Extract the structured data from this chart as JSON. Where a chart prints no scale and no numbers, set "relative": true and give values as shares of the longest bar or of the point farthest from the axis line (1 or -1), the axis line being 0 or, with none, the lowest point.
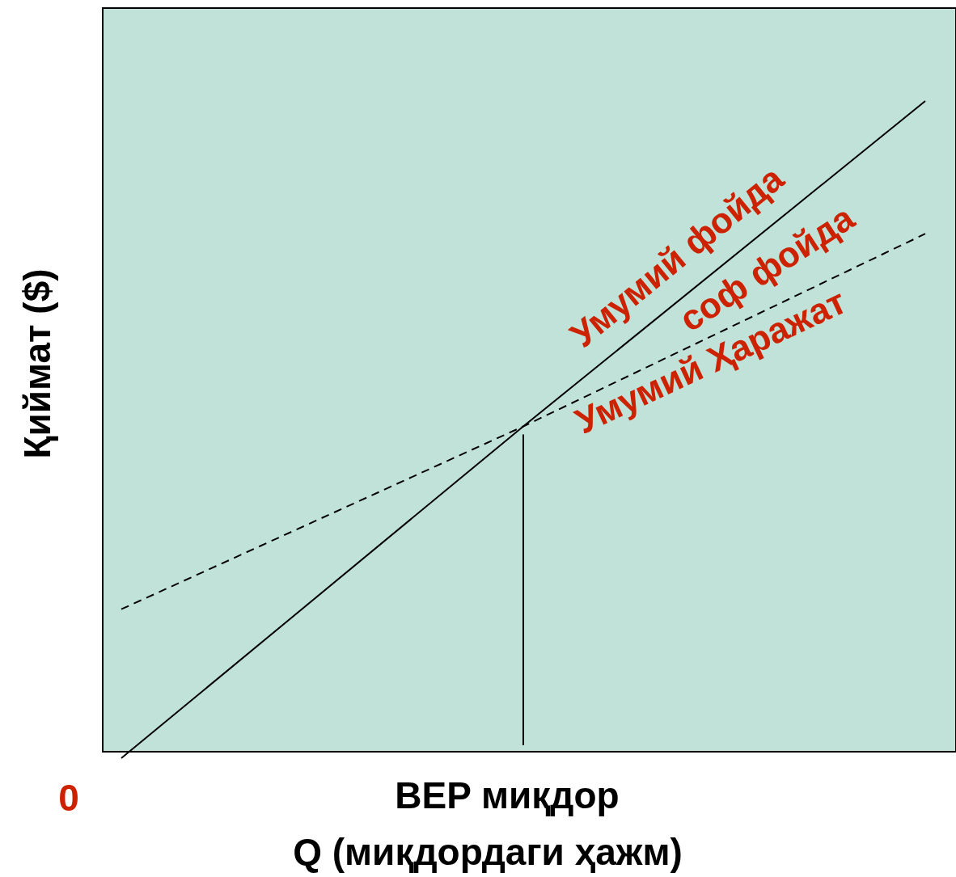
{
  "chart_data": {
    "type": "line",
    "relative": true,
    "ylabel": "Қиймат ($)",
    "xlabel": "Q (миқдордаги ҳажм)",
    "categories": [
      null,
      null,
      null
    ],
    "series": [
      {
        "name": "Умумий фойда",
        "color": "#000000",
        "line_style": "solid",
        "values": [
          -0.01,
          0.5,
          1
        ]
      },
      {
        "name": "Умумий Ҳаражат",
        "color": "#000000",
        "line_style": "dashed",
        "values": [
          0.219,
          0.5,
          0.796
        ]
      }
    ],
    "ref_lines": [
      {
        "axis": "x",
        "label": "BEP миқдор",
        "color": "#000000"
      }
    ],
    "annotations": [
      "соф фойда",
      "0"
    ],
    "legend": false
  }
}
